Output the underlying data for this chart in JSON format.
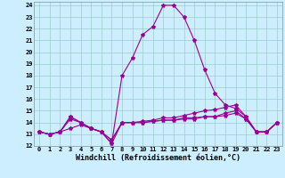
{
  "xlabel": "Windchill (Refroidissement éolien,°C)",
  "background_color": "#cceeff",
  "line_color": "#990099",
  "grid_color": "#99cccc",
  "xlim": [
    -0.5,
    23.5
  ],
  "ylim": [
    12,
    24.3
  ],
  "xticks": [
    0,
    1,
    2,
    3,
    4,
    5,
    6,
    7,
    8,
    9,
    10,
    11,
    12,
    13,
    14,
    15,
    16,
    17,
    18,
    19,
    20,
    21,
    22,
    23
  ],
  "yticks": [
    12,
    13,
    14,
    15,
    16,
    17,
    18,
    19,
    20,
    21,
    22,
    23,
    24
  ],
  "series": [
    [
      13.2,
      13.0,
      13.2,
      14.5,
      14.0,
      13.5,
      13.2,
      12.2,
      18.0,
      19.5,
      21.5,
      22.2,
      24.0,
      24.0,
      23.0,
      21.0,
      18.5,
      16.5,
      15.5,
      15.2,
      14.5,
      13.2,
      13.2,
      14.0
    ],
    [
      13.2,
      13.0,
      13.2,
      14.5,
      14.0,
      13.5,
      13.2,
      12.2,
      14.0,
      14.0,
      14.1,
      14.2,
      14.4,
      14.4,
      14.6,
      14.8,
      15.0,
      15.1,
      15.3,
      15.5,
      14.5,
      13.2,
      13.2,
      14.0
    ],
    [
      13.2,
      13.0,
      13.2,
      14.3,
      14.0,
      13.5,
      13.2,
      12.5,
      14.0,
      14.0,
      14.0,
      14.1,
      14.2,
      14.2,
      14.4,
      14.4,
      14.5,
      14.5,
      14.8,
      15.0,
      14.3,
      13.2,
      13.2,
      14.0
    ],
    [
      13.2,
      13.0,
      13.2,
      13.5,
      13.8,
      13.5,
      13.2,
      12.5,
      14.0,
      14.0,
      14.0,
      14.1,
      14.2,
      14.2,
      14.3,
      14.3,
      14.5,
      14.5,
      14.6,
      14.8,
      14.3,
      13.2,
      13.2,
      14.0
    ]
  ],
  "marker": "*",
  "markersize": 3,
  "linewidth": 0.8,
  "tick_fontsize": 5,
  "label_fontsize": 6
}
